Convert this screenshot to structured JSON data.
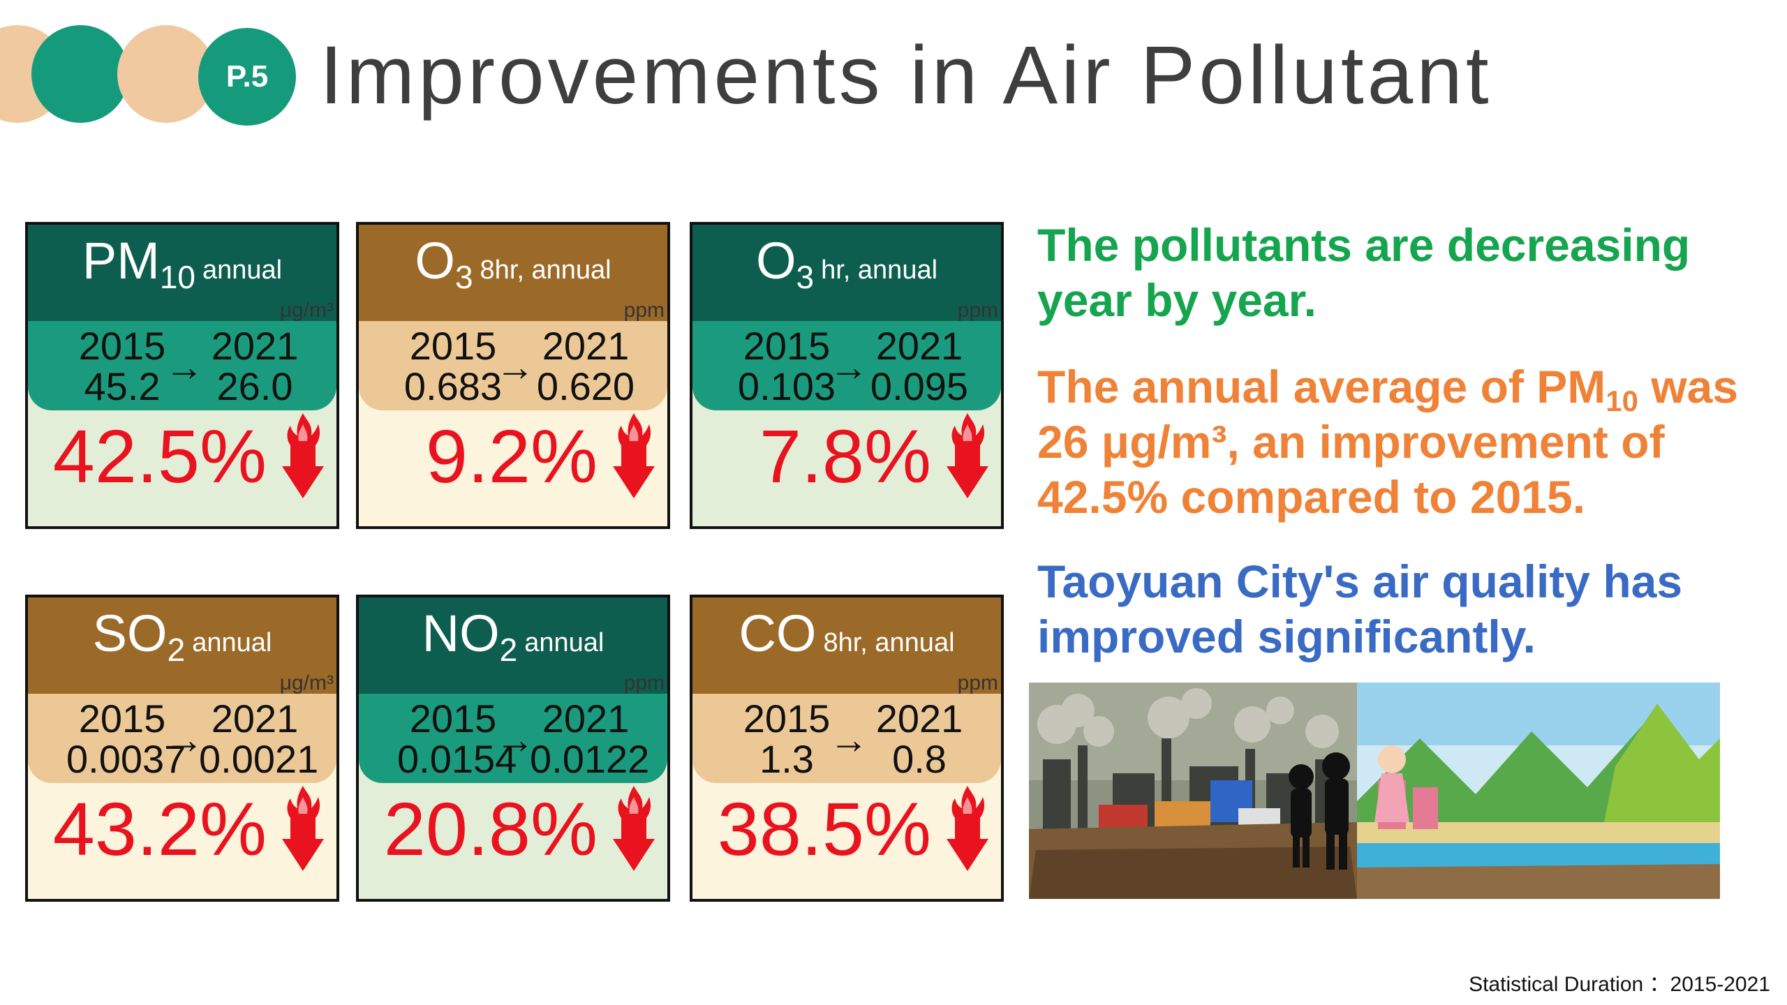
{
  "header": {
    "page_badge": "P.5",
    "title": "Improvements in Air Pollutant"
  },
  "cards": [
    {
      "pollutant": "PM",
      "sub": "10",
      "qualifier": "annual",
      "unit": "μg/m³",
      "year_from": "2015",
      "year_to": "2021",
      "value_from": "45.2",
      "value_to": "26.0",
      "improvement": "42.5%",
      "theme": "teal"
    },
    {
      "pollutant": "O",
      "sub": "3",
      "qualifier": "8hr, annual",
      "unit": "ppm",
      "year_from": "2015",
      "year_to": "2021",
      "value_from": "0.683",
      "value_to": "0.620",
      "improvement": "9.2%",
      "theme": "brown"
    },
    {
      "pollutant": "O",
      "sub": "3",
      "qualifier": "hr, annual",
      "unit": "ppm",
      "year_from": "2015",
      "year_to": "2021",
      "value_from": "0.103",
      "value_to": "0.095",
      "improvement": "7.8%",
      "theme": "teal"
    },
    {
      "pollutant": "SO",
      "sub": "2",
      "qualifier": "annual",
      "unit": "μg/m³",
      "year_from": "2015",
      "year_to": "2021",
      "value_from": "0.0037",
      "value_to": "0.0021",
      "improvement": "43.2%",
      "theme": "brown"
    },
    {
      "pollutant": "NO",
      "sub": "2",
      "qualifier": "annual",
      "unit": "ppm",
      "year_from": "2015",
      "year_to": "2021",
      "value_from": "0.0154",
      "value_to": "0.0122",
      "improvement": "20.8%",
      "theme": "teal"
    },
    {
      "pollutant": "CO",
      "sub": "",
      "qualifier": "8hr, annual",
      "unit": "ppm",
      "year_from": "2015",
      "year_to": "2021",
      "value_from": "1.3",
      "value_to": "0.8",
      "improvement": "38.5%",
      "theme": "brown"
    }
  ],
  "arrow_glyph": "→",
  "messages": {
    "m1": "The pollutants are decreasing year by year.",
    "m2_a": "The annual average of PM",
    "m2_sub": "10",
    "m2_b": " was 26 μg/m³, an improvement of 42.5% compared to 2015.",
    "m3": "Taoyuan City's air quality has improved significantly."
  },
  "footer": "Statistical Duration ：2015-2021",
  "colors": {
    "teal_dark": "#0e5e4f",
    "teal": "#1b9b7d",
    "brown": "#9c6a28",
    "tan": "#ecc896",
    "red": "#e8131e",
    "green_text": "#14a54e",
    "orange_text": "#ef8236",
    "blue_text": "#3a6bc4"
  }
}
